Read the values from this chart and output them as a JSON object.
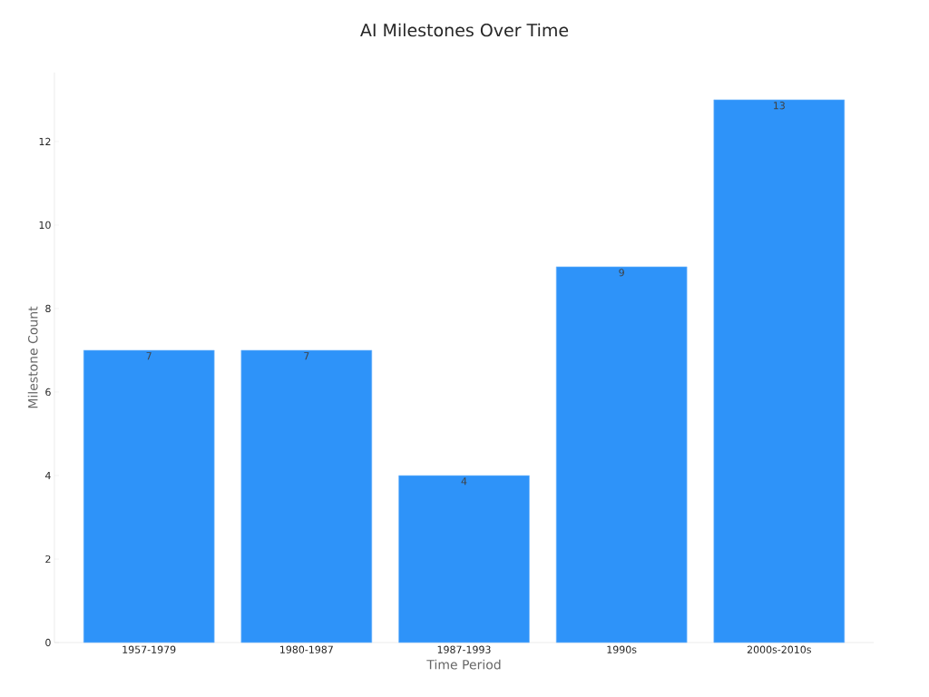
{
  "chart_data": {
    "type": "bar",
    "title": "AI Milestones Over Time",
    "xlabel": "Time Period",
    "ylabel": "Milestone Count",
    "categories": [
      "1957-1979",
      "1980-1987",
      "1987-1993",
      "1990s",
      "2000s-2010s"
    ],
    "values": [
      7,
      7,
      4,
      9,
      13
    ],
    "color": "#2e93f9",
    "ylim": [
      0,
      13.65
    ],
    "yticks": [
      0,
      2,
      4,
      6,
      8,
      10,
      12
    ],
    "grid": false,
    "data_labels": true
  }
}
